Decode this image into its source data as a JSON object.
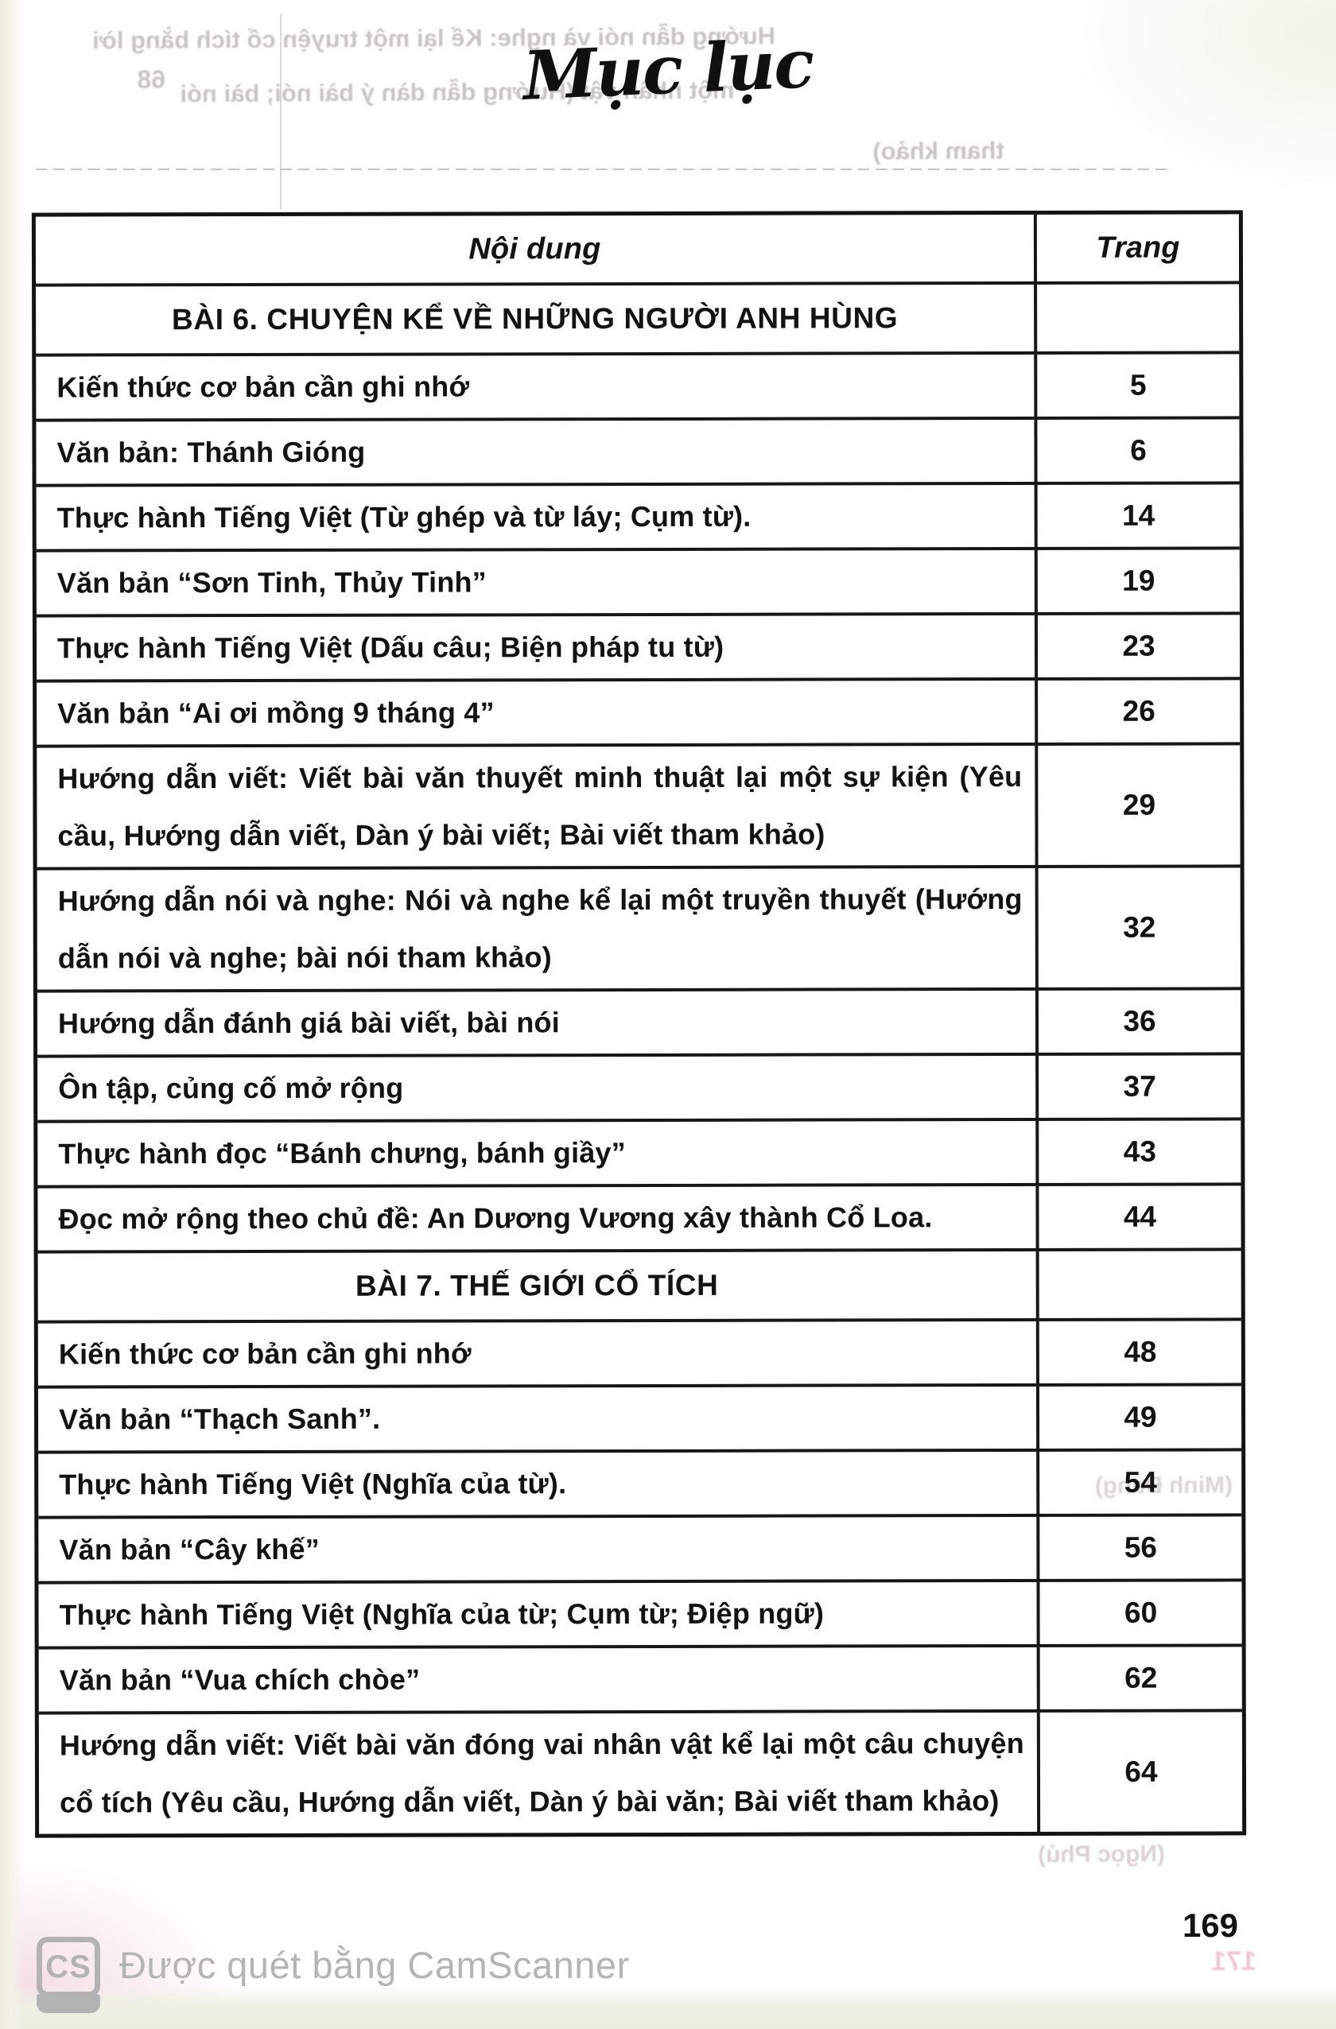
{
  "page": {
    "title": "Mục lục",
    "book_page_number": "169"
  },
  "table": {
    "headers": {
      "content": "Nội dung",
      "page": "Trang"
    },
    "rows": [
      {
        "type": "section",
        "text": "BÀI 6. CHUYỆN KỂ VỀ NHỮNG NGƯỜI ANH HÙNG",
        "page": ""
      },
      {
        "type": "item",
        "text": "Kiến thức cơ bản cần ghi nhớ",
        "page": "5"
      },
      {
        "type": "item",
        "text": "Văn bản: Thánh Gióng",
        "page": "6"
      },
      {
        "type": "item",
        "text": "Thực hành Tiếng Việt (Từ ghép và từ láy; Cụm từ).",
        "page": "14"
      },
      {
        "type": "item",
        "text": "Văn bản “Sơn Tinh, Thủy Tinh”",
        "page": "19"
      },
      {
        "type": "item",
        "text": "Thực hành Tiếng Việt (Dấu câu; Biện pháp tu từ)",
        "page": "23"
      },
      {
        "type": "item",
        "text": "Văn bản “Ai ơi mồng 9 tháng 4”",
        "page": "26"
      },
      {
        "type": "item",
        "text": "Hướng dẫn viết: Viết bài văn thuyết minh thuật lại một sự kiện (Yêu cầu, Hướng dẫn viết, Dàn ý bài viết; Bài viết tham khảo)",
        "page": "29"
      },
      {
        "type": "item",
        "text": "Hướng dẫn nói và nghe: Nói và nghe kể lại một truyền thuyết (Hướng dẫn nói và nghe; bài nói tham khảo)",
        "page": "32"
      },
      {
        "type": "item",
        "text": "Hướng dẫn đánh giá bài viết, bài nói",
        "page": "36"
      },
      {
        "type": "item",
        "text": "Ôn tập, củng cố mở rộng",
        "page": "37"
      },
      {
        "type": "item",
        "text": "Thực hành đọc “Bánh chưng, bánh giầy”",
        "page": "43"
      },
      {
        "type": "item",
        "text": "Đọc mở rộng theo chủ đề: An Dương Vương xây thành Cổ Loa.",
        "page": "44"
      },
      {
        "type": "section",
        "text": "BÀI 7. THẾ GIỚI CỔ TÍCH",
        "page": ""
      },
      {
        "type": "item",
        "text": "Kiến thức cơ bản cần ghi nhớ",
        "page": "48"
      },
      {
        "type": "item",
        "text": "Văn bản “Thạch Sanh”.",
        "page": "49"
      },
      {
        "type": "item",
        "text": "Thực hành Tiếng Việt (Nghĩa của từ).",
        "page": "54"
      },
      {
        "type": "item",
        "text": "Văn bản “Cây khế”",
        "page": "56"
      },
      {
        "type": "item",
        "text": "Thực hành Tiếng Việt (Nghĩa của từ; Cụm từ; Điệp ngữ)",
        "page": "60"
      },
      {
        "type": "item",
        "text": "Văn bản “Vua chích chòe”",
        "page": "62"
      },
      {
        "type": "item",
        "text": "Hướng dẫn viết: Viết bài văn đóng vai nhân vật kể lại một câu chuyện cổ tích (Yêu cầu, Hướng dẫn viết, Dàn ý bài văn; Bài viết tham khảo)",
        "page": "64"
      }
    ]
  },
  "footer": {
    "scanner_logo": "CS",
    "scanner_text": "Được quét bằng CamScanner"
  },
  "bleedthrough": {
    "line1": "Hướng dẫn nói và nghe: Kể lại một truyện cổ tích bằng lời",
    "line2": "một nhân vật (Hướng dẫn dàn ý bài nói; bài nói",
    "line3": "tham khảo)",
    "num1": "68",
    "frag1": "(Minh Đang)",
    "frag2": "(Ngọc Phủ)",
    "num2": "171"
  },
  "colors": {
    "ink": "#141414",
    "paper": "#f9f7f1",
    "scanner_gray": "#b3b3b3"
  }
}
